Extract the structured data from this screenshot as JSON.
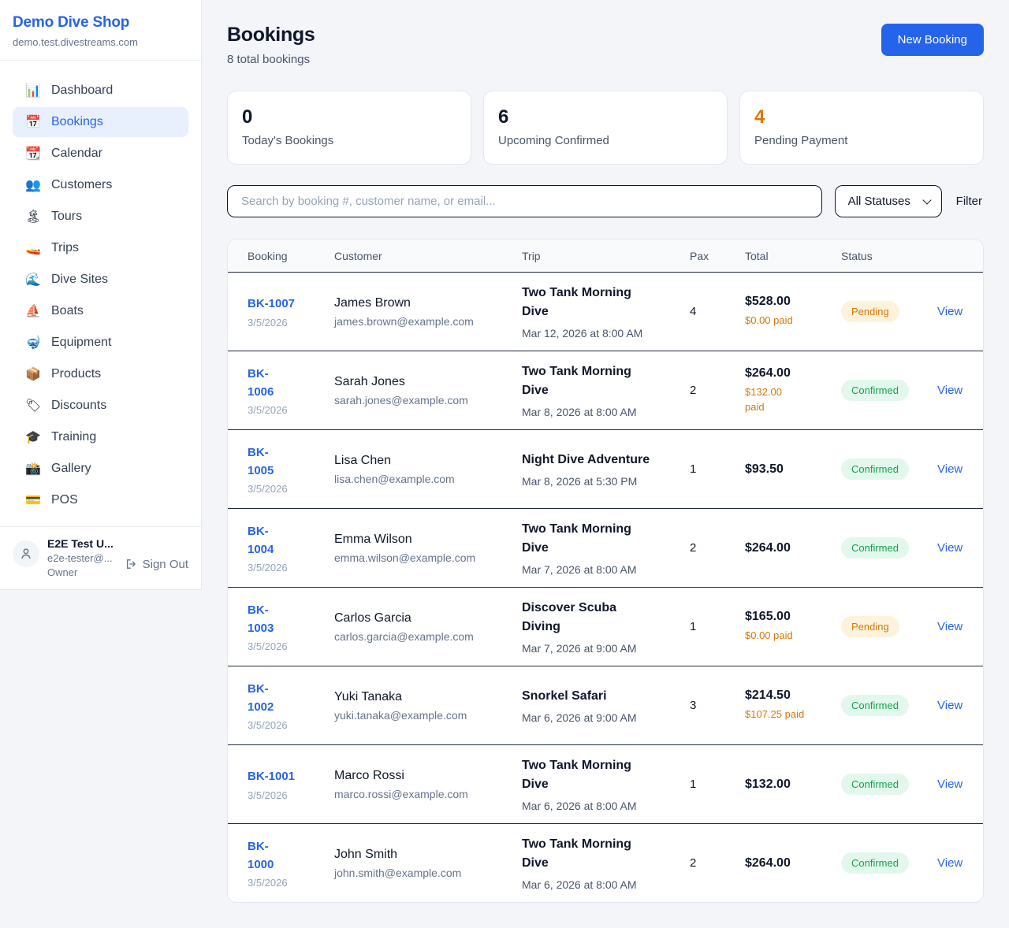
{
  "sidebar": {
    "brand": {
      "name": "Demo Dive Shop",
      "domain": "demo.test.divestreams.com"
    },
    "items": [
      {
        "id": "dashboard",
        "icon": "📊",
        "icon_name": "bar-chart-icon",
        "label": "Dashboard",
        "active": false
      },
      {
        "id": "bookings",
        "icon": "📅",
        "icon_name": "calendar-icon",
        "label": "Bookings",
        "active": true
      },
      {
        "id": "calendar",
        "icon": "📆",
        "icon_name": "tear-off-calendar-icon",
        "label": "Calendar",
        "active": false
      },
      {
        "id": "customers",
        "icon": "👥",
        "icon_name": "people-icon",
        "label": "Customers",
        "active": false
      },
      {
        "id": "tours",
        "icon": "🏝",
        "icon_name": "island-icon",
        "label": "Tours",
        "active": false
      },
      {
        "id": "trips",
        "icon": "🚤",
        "icon_name": "speedboat-icon",
        "label": "Trips",
        "active": false
      },
      {
        "id": "dive-sites",
        "icon": "🌊",
        "icon_name": "wave-icon",
        "label": "Dive Sites",
        "active": false
      },
      {
        "id": "boats",
        "icon": "⛵",
        "icon_name": "sailboat-icon",
        "label": "Boats",
        "active": false
      },
      {
        "id": "equipment",
        "icon": "🤿",
        "icon_name": "diving-mask-icon",
        "label": "Equipment",
        "active": false
      },
      {
        "id": "products",
        "icon": "📦",
        "icon_name": "package-icon",
        "label": "Products",
        "active": false
      },
      {
        "id": "discounts",
        "icon": "🏷",
        "icon_name": "tag-icon",
        "label": "Discounts",
        "active": false
      },
      {
        "id": "training",
        "icon": "🎓",
        "icon_name": "graduation-cap-icon",
        "label": "Training",
        "active": false
      },
      {
        "id": "gallery",
        "icon": "📸",
        "icon_name": "camera-icon",
        "label": "Gallery",
        "active": false
      },
      {
        "id": "pos",
        "icon": "💳",
        "icon_name": "credit-card-icon",
        "label": "POS",
        "active": false
      }
    ],
    "user": {
      "name": "E2E Test U...",
      "email": "e2e-tester@...",
      "role": "Owner",
      "signout_label": "Sign Out"
    }
  },
  "header": {
    "title": "Bookings",
    "subtitle": "8 total bookings",
    "new_booking_label": "New Booking"
  },
  "stats": [
    {
      "value": "0",
      "label": "Today's Bookings"
    },
    {
      "value": "6",
      "label": "Upcoming Confirmed"
    },
    {
      "value": "4",
      "label": "Pending Payment",
      "value_color": "#d97706"
    }
  ],
  "filters": {
    "search_placeholder": "Search by booking #, customer name, or email...",
    "status_selected": "All Statuses",
    "filter_label": "Filter"
  },
  "table": {
    "columns": [
      "Booking",
      "Customer",
      "Trip",
      "Pax",
      "Total",
      "Status",
      ""
    ],
    "rows": [
      {
        "number": "BK-1007",
        "date": "3/5/2026",
        "customer_name": "James Brown",
        "customer_email": "james.brown@example.com",
        "trip_name": "Two Tank Morning\nDive",
        "trip_datetime": "Mar 12, 2026 at 8:00 AM",
        "pax": "4",
        "total": "$528.00",
        "paid": "$0.00 paid",
        "status": "Pending",
        "view": "View"
      },
      {
        "number": "BK-\n1006",
        "date": "3/5/2026",
        "customer_name": "Sarah Jones",
        "customer_email": "sarah.jones@example.com",
        "trip_name": "Two Tank Morning\nDive",
        "trip_datetime": "Mar 8, 2026 at 8:00 AM",
        "pax": "2",
        "total": "$264.00",
        "paid": "$132.00\npaid",
        "status": "Confirmed",
        "view": "View"
      },
      {
        "number": "BK-\n1005",
        "date": "3/5/2026",
        "customer_name": "Lisa Chen",
        "customer_email": "lisa.chen@example.com",
        "trip_name": "Night Dive Adventure",
        "trip_datetime": "Mar 8, 2026 at 5:30 PM",
        "pax": "1",
        "total": "$93.50",
        "paid": null,
        "status": "Confirmed",
        "view": "View"
      },
      {
        "number": "BK-\n1004",
        "date": "3/5/2026",
        "customer_name": "Emma Wilson",
        "customer_email": "emma.wilson@example.com",
        "trip_name": "Two Tank Morning\nDive",
        "trip_datetime": "Mar 7, 2026 at 8:00 AM",
        "pax": "2",
        "total": "$264.00",
        "paid": null,
        "status": "Confirmed",
        "view": "View"
      },
      {
        "number": "BK-\n1003",
        "date": "3/5/2026",
        "customer_name": "Carlos Garcia",
        "customer_email": "carlos.garcia@example.com",
        "trip_name": "Discover Scuba\nDiving",
        "trip_datetime": "Mar 7, 2026 at 9:00 AM",
        "pax": "1",
        "total": "$165.00",
        "paid": "$0.00 paid",
        "status": "Pending",
        "view": "View"
      },
      {
        "number": "BK-\n1002",
        "date": "3/5/2026",
        "customer_name": "Yuki Tanaka",
        "customer_email": "yuki.tanaka@example.com",
        "trip_name": "Snorkel Safari",
        "trip_datetime": "Mar 6, 2026 at 9:00 AM",
        "pax": "3",
        "total": "$214.50",
        "paid": "$107.25 paid",
        "status": "Confirmed",
        "view": "View"
      },
      {
        "number": "BK-1001",
        "date": "3/5/2026",
        "customer_name": "Marco Rossi",
        "customer_email": "marco.rossi@example.com",
        "trip_name": "Two Tank Morning\nDive",
        "trip_datetime": "Mar 6, 2026 at 8:00 AM",
        "pax": "1",
        "total": "$132.00",
        "paid": null,
        "status": "Confirmed",
        "view": "View"
      },
      {
        "number": "BK-\n1000",
        "date": "3/5/2026",
        "customer_name": "John Smith",
        "customer_email": "john.smith@example.com",
        "trip_name": "Two Tank Morning\nDive",
        "trip_datetime": "Mar 6, 2026 at 8:00 AM",
        "pax": "2",
        "total": "$264.00",
        "paid": null,
        "status": "Confirmed",
        "view": "View"
      }
    ]
  },
  "colors": {
    "accent_blue": "#2563eb",
    "pending_text": "#d97706",
    "pending_bg": "#fdf3dd",
    "confirmed_text": "#16a34a",
    "confirmed_bg": "#e3f8ec",
    "paid_orange": "#d97706",
    "row_separator": "#1e293b"
  }
}
